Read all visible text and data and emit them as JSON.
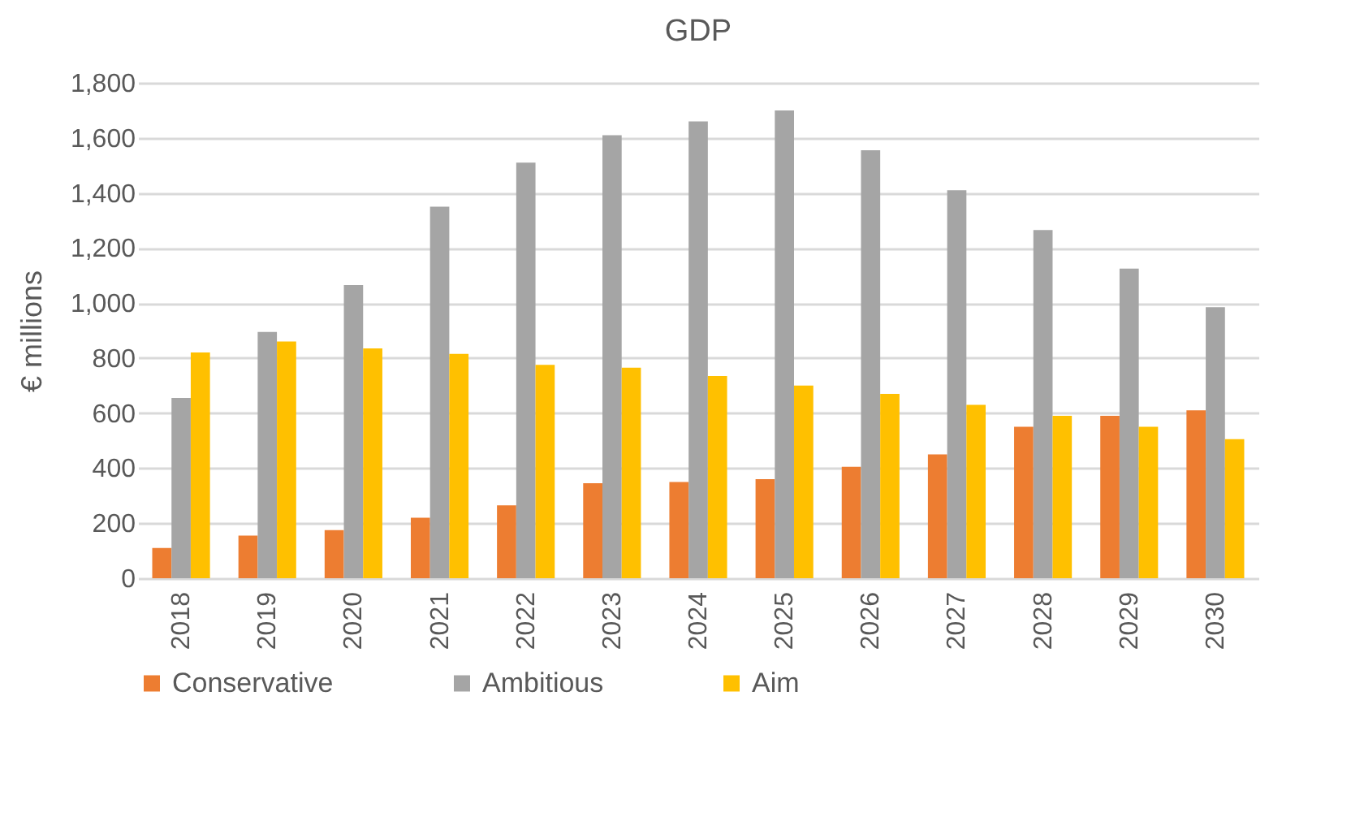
{
  "chart_data": {
    "type": "bar",
    "title": "GDP",
    "ylabel": "€ millions",
    "categories": [
      "2018",
      "2019",
      "2020",
      "2021",
      "2022",
      "2023",
      "2024",
      "2025",
      "2026",
      "2027",
      "2028",
      "2029",
      "2030"
    ],
    "series": [
      {
        "name": "Conservative",
        "color": "#ed7d31",
        "values": [
          110,
          155,
          175,
          220,
          265,
          345,
          350,
          360,
          405,
          450,
          550,
          590,
          610
        ]
      },
      {
        "name": "Ambitious",
        "color": "#a5a5a5",
        "values": [
          655,
          895,
          1065,
          1350,
          1510,
          1610,
          1660,
          1700,
          1555,
          1410,
          1265,
          1125,
          985
        ]
      },
      {
        "name": "Aim",
        "color": "#ffc000",
        "values": [
          820,
          860,
          835,
          815,
          775,
          765,
          735,
          700,
          670,
          630,
          590,
          550,
          505
        ]
      }
    ],
    "ylim": [
      0,
      1800
    ],
    "yticks": [
      0,
      200,
      400,
      600,
      800,
      {
        "value": 1000,
        "label": "1,000"
      },
      {
        "value": 1200,
        "label": "1,200"
      },
      {
        "value": 1400,
        "label": "1,400"
      },
      {
        "value": 1600,
        "label": "1,600"
      },
      {
        "value": 1800,
        "label": "1,800"
      }
    ],
    "grid": "y",
    "legend": "bottom"
  }
}
